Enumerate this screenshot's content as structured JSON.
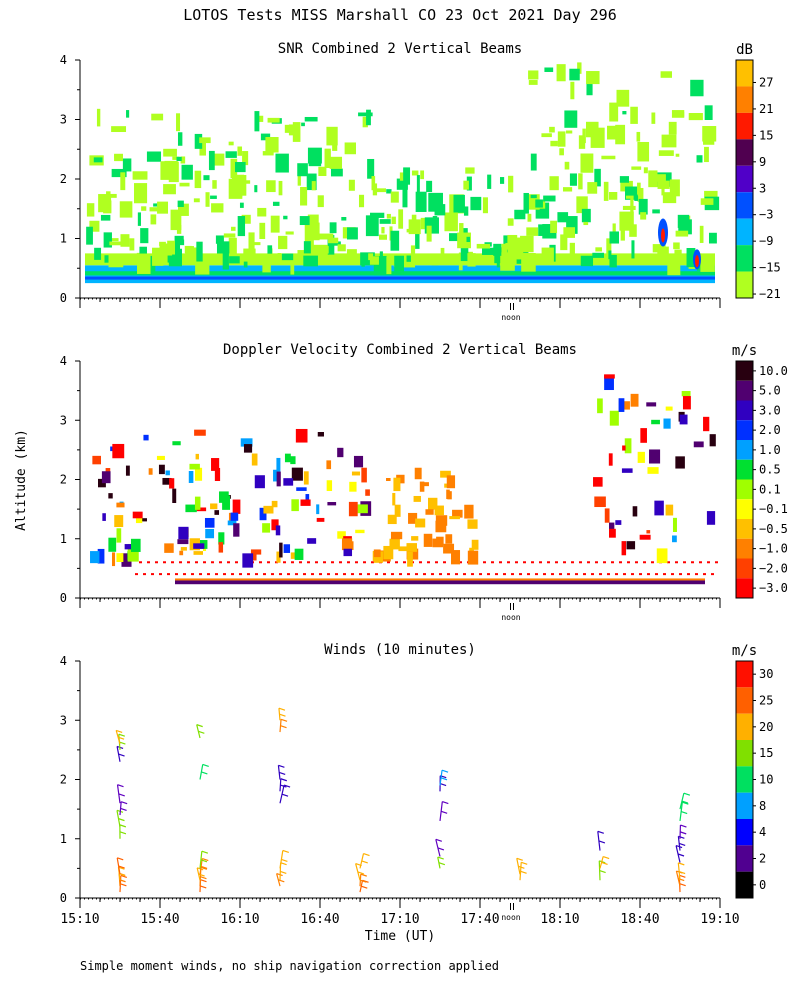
{
  "title": "LOTOS Tests MISS Marshall CO  23 Oct 2021 Day 296",
  "footer": "Simple moment winds, no ship navigation correction applied",
  "ylabel": "Altitude (km)",
  "xlabel": "Time (UT)",
  "noon_label": "noon",
  "chart_data": [
    {
      "type": "heatmap",
      "title": "SNR Combined 2 Vertical Beams",
      "units": "dB",
      "x_range_hours": [
        15.1667,
        19.1667
      ],
      "ylim": [
        0,
        4
      ],
      "yticks": [
        0,
        1,
        2,
        3,
        4
      ],
      "colorbar_labels": [
        "27",
        "21",
        "15",
        "9",
        "3",
        "−3",
        "−9",
        "−15",
        "−21"
      ],
      "colorbar_colors": [
        "#ffc000",
        "#ff8000",
        "#ff1a00",
        "#500050",
        "#5000c8",
        "#0050ff",
        "#00b4ff",
        "#00e060",
        "#b0ff20"
      ],
      "show_xtick_labels": false
    },
    {
      "type": "heatmap",
      "title": "Doppler Velocity Combined 2 Vertical Beams",
      "units": "m/s",
      "x_range_hours": [
        15.1667,
        19.1667
      ],
      "ylim": [
        0,
        4
      ],
      "yticks": [
        0,
        1,
        2,
        3,
        4
      ],
      "colorbar_labels": [
        "10.0",
        "5.0",
        "3.0",
        "2.0",
        "1.0",
        "0.5",
        "0.1",
        "−0.1",
        "−0.5",
        "−1.0",
        "−2.0",
        "−3.0"
      ],
      "colorbar_colors": [
        "#280010",
        "#500070",
        "#3000c0",
        "#0030ff",
        "#00a0ff",
        "#00e030",
        "#a0ff00",
        "#ffff00",
        "#ffc000",
        "#ff8000",
        "#ff4000",
        "#ff0000"
      ],
      "show_xtick_labels": false
    },
    {
      "type": "scatter",
      "title": "Winds (10 minutes)",
      "units": "m/s",
      "x_range_hours": [
        15.1667,
        19.1667
      ],
      "ylim": [
        0,
        4
      ],
      "yticks": [
        0,
        1,
        2,
        3,
        4
      ],
      "xtick_labels": [
        "15:10",
        "15:40",
        "16:10",
        "16:40",
        "17:10",
        "17:40",
        "18:10",
        "18:40",
        "19:10"
      ],
      "colorbar_labels": [
        "30",
        "25",
        "20",
        "15",
        "10",
        "8",
        "4",
        "2",
        "0"
      ],
      "colorbar_colors": [
        "#ff1000",
        "#ff6000",
        "#ffb000",
        "#80e000",
        "#00e060",
        "#00a0ff",
        "#0000ff",
        "#500090",
        "#000000"
      ],
      "barb_groups": [
        {
          "time": "15:25",
          "altitudes": [
            0.1,
            0.2,
            0.3,
            0.4,
            1.0,
            1.2,
            1.4,
            1.6,
            2.3,
            2.5,
            2.6
          ],
          "colors": [
            "#ff6000",
            "#ff8000",
            "#ffb000",
            "#ff6000",
            "#80e000",
            "#80e000",
            "#6000c0",
            "#6000c0",
            "#3000c0",
            "#80e000",
            "#ffb000"
          ]
        },
        {
          "time": "15:55",
          "altitudes": [
            0.1,
            0.2,
            0.3,
            0.4,
            0.5,
            2.0,
            2.7
          ],
          "colors": [
            "#ff6000",
            "#ff8000",
            "#ffb000",
            "#ff8000",
            "#80e000",
            "#00e060",
            "#80e000"
          ]
        },
        {
          "time": "16:25",
          "altitudes": [
            0.2,
            0.3,
            0.5,
            1.6,
            1.8,
            2.0,
            2.8,
            3.0
          ],
          "colors": [
            "#ff8000",
            "#ffb000",
            "#ffb000",
            "#3000c0",
            "#3000c0",
            "#3000c0",
            "#ff8000",
            "#ffb000"
          ]
        },
        {
          "time": "16:55",
          "altitudes": [
            0.1,
            0.2,
            0.3,
            0.5
          ],
          "colors": [
            "#ff6000",
            "#ff8000",
            "#ffb000",
            "#ffb000"
          ]
        },
        {
          "time": "17:25",
          "altitudes": [
            0.5,
            0.7,
            1.3,
            1.8,
            1.9
          ],
          "colors": [
            "#80e000",
            "#6000c0",
            "#6000c0",
            "#3000c0",
            "#00a0ff"
          ]
        },
        {
          "time": "17:55",
          "altitudes": [
            0.3,
            0.4
          ],
          "colors": [
            "#ffb000",
            "#ffb000"
          ]
        },
        {
          "time": "18:25",
          "altitudes": [
            0.3,
            0.5,
            0.8
          ],
          "colors": [
            "#80e000",
            "#ffb000",
            "#3000c0"
          ]
        },
        {
          "time": "18:55",
          "altitudes": [
            0.1,
            0.2,
            0.3,
            0.6,
            0.8,
            1.0,
            1.3,
            1.5
          ],
          "colors": [
            "#ff6000",
            "#ff8000",
            "#ffb000",
            "#3000c0",
            "#3000c0",
            "#6000c0",
            "#00e060",
            "#00e060"
          ]
        }
      ]
    }
  ]
}
